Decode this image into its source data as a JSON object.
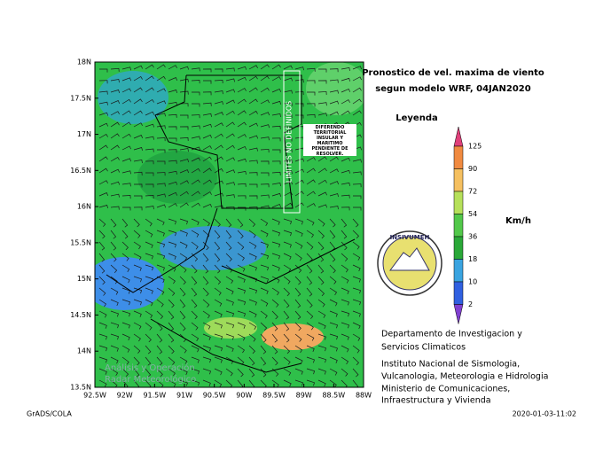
{
  "title": [
    "Pronostico de vel. maxima de viento",
    "segun modelo WRF, 04JAN2020"
  ],
  "legend": {
    "title": "Leyenda",
    "unit": "Km/h",
    "levels": [
      "125",
      "90",
      "72",
      "54",
      "36",
      "18",
      "10",
      "2"
    ]
  },
  "lat_labels": [
    "18N",
    "17.5N",
    "17N",
    "16.5N",
    "16N",
    "15.5N",
    "15N",
    "14.5N",
    "14N",
    "13.5N"
  ],
  "lon_labels": [
    "92.5W",
    "92W",
    "91.5W",
    "91W",
    "90.5W",
    "90W",
    "89.5W",
    "89W",
    "88.5W",
    "88W"
  ],
  "map_annotations": {
    "border_note": "LIMITES NO DEFINIDOS",
    "dispute_note": "DIFERENDO TERRITORIAL INSULAR Y MARITIMO PENDIENTE DE RESOLVER.",
    "watermark": [
      "Análisis y Operación",
      "Radar Meteorológico"
    ]
  },
  "logo": "INSIVUMEH",
  "department": [
    "Departamento de Investigacion y",
    "Servicios Climaticos"
  ],
  "institute": [
    "Instituto Nacional de Sismologia,",
    "Vulcanologia, Meteorologia e Hidrologia"
  ],
  "ministry": [
    "Ministerio de Comunicaciones,",
    "Infraestructura y Vivienda"
  ],
  "footer": {
    "left": "GrADS/COLA",
    "right": "2020-01-03-11:02"
  }
}
